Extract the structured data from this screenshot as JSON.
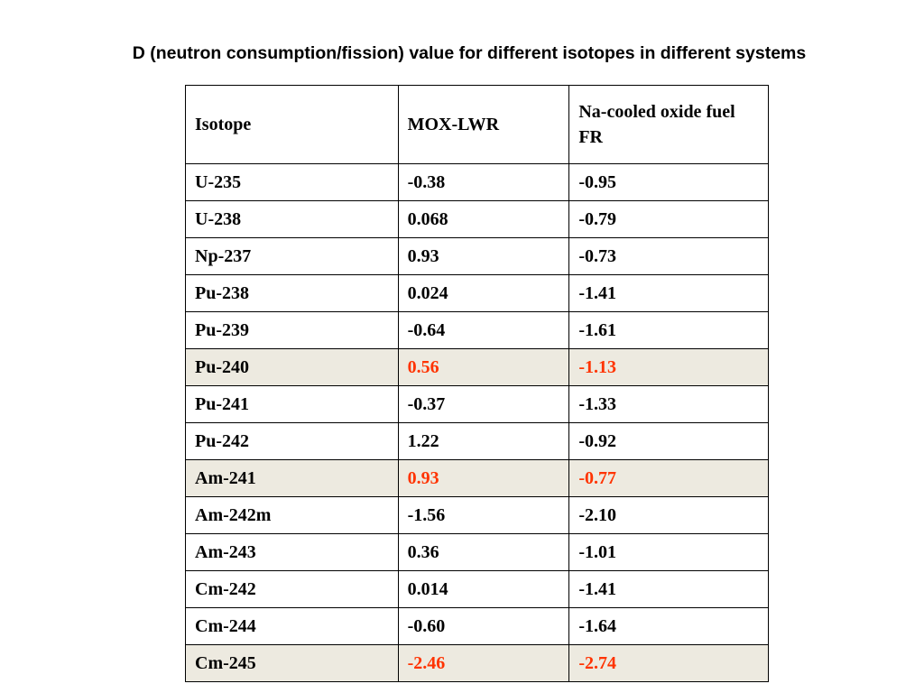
{
  "title": "D (neutron consumption/fission) value for different isotopes in different systems",
  "colors": {
    "highlight_background": "#edeae0",
    "highlight_text": "#ff3300"
  },
  "table": {
    "headers": [
      "Isotope",
      "MOX-LWR",
      "Na-cooled oxide fuel FR"
    ],
    "rows": [
      {
        "isotope": "U-235",
        "mox_lwr": "-0.38",
        "na_fr": "-0.95",
        "highlighted": false
      },
      {
        "isotope": "U-238",
        "mox_lwr": "0.068",
        "na_fr": "-0.79",
        "highlighted": false
      },
      {
        "isotope": "Np-237",
        "mox_lwr": "0.93",
        "na_fr": "-0.73",
        "highlighted": false
      },
      {
        "isotope": "Pu-238",
        "mox_lwr": "0.024",
        "na_fr": "-1.41",
        "highlighted": false
      },
      {
        "isotope": "Pu-239",
        "mox_lwr": "-0.64",
        "na_fr": "-1.61",
        "highlighted": false
      },
      {
        "isotope": "Pu-240",
        "mox_lwr": "0.56",
        "na_fr": "-1.13",
        "highlighted": true
      },
      {
        "isotope": "Pu-241",
        "mox_lwr": "-0.37",
        "na_fr": "-1.33",
        "highlighted": false
      },
      {
        "isotope": "Pu-242",
        "mox_lwr": "1.22",
        "na_fr": "-0.92",
        "highlighted": false
      },
      {
        "isotope": "Am-241",
        "mox_lwr": "0.93",
        "na_fr": "-0.77",
        "highlighted": true
      },
      {
        "isotope": "Am-242m",
        "mox_lwr": "-1.56",
        "na_fr": "-2.10",
        "highlighted": false
      },
      {
        "isotope": "Am-243",
        "mox_lwr": "0.36",
        "na_fr": "-1.01",
        "highlighted": false
      },
      {
        "isotope": "Cm-242",
        "mox_lwr": "0.014",
        "na_fr": "-1.41",
        "highlighted": false
      },
      {
        "isotope": "Cm-244",
        "mox_lwr": "-0.60",
        "na_fr": "-1.64",
        "highlighted": false
      },
      {
        "isotope": "Cm-245",
        "mox_lwr": "-2.46",
        "na_fr": "-2.74",
        "highlighted": true
      }
    ]
  }
}
